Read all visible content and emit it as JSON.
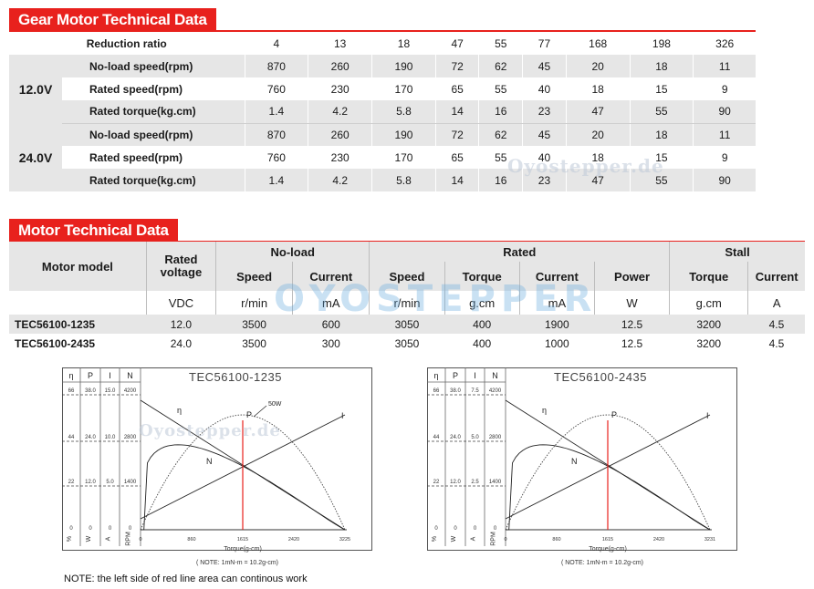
{
  "gear": {
    "title": "Gear Motor Technical Data",
    "ratio_label": "Reduction ratio",
    "ratios": [
      "4",
      "13",
      "18",
      "47",
      "55",
      "77",
      "168",
      "198",
      "326"
    ],
    "groups": [
      {
        "voltage": "12.0V",
        "rows": [
          {
            "label": "No-load speed(rpm)",
            "values": [
              "870",
              "260",
              "190",
              "72",
              "62",
              "45",
              "20",
              "18",
              "11"
            ]
          },
          {
            "label": "Rated speed(rpm)",
            "values": [
              "760",
              "230",
              "170",
              "65",
              "55",
              "40",
              "18",
              "15",
              "9"
            ]
          },
          {
            "label": "Rated torque(kg.cm)",
            "values": [
              "1.4",
              "4.2",
              "5.8",
              "14",
              "16",
              "23",
              "47",
              "55",
              "90"
            ]
          }
        ]
      },
      {
        "voltage": "24.0V",
        "rows": [
          {
            "label": "No-load speed(rpm)",
            "values": [
              "870",
              "260",
              "190",
              "72",
              "62",
              "45",
              "20",
              "18",
              "11"
            ]
          },
          {
            "label": "Rated speed(rpm)",
            "values": [
              "760",
              "230",
              "170",
              "65",
              "55",
              "40",
              "18",
              "15",
              "9"
            ]
          },
          {
            "label": "Rated torque(kg.cm)",
            "values": [
              "1.4",
              "4.2",
              "5.8",
              "14",
              "16",
              "23",
              "47",
              "55",
              "90"
            ]
          }
        ]
      }
    ]
  },
  "motor": {
    "title": "Motor Technical Data",
    "model_header": "Motor model",
    "rated_voltage_header": "Rated voltage",
    "noload_header": "No-load",
    "rated_header": "Rated",
    "stall_header": "Stall",
    "sub": [
      "Speed",
      "Current",
      "Speed",
      "Torque",
      "Current",
      "Power",
      "Torque",
      "Current"
    ],
    "units": [
      "VDC",
      "r/min",
      "mA",
      "r/min",
      "g.cm",
      "mA",
      "W",
      "g.cm",
      "A"
    ],
    "rows": [
      {
        "model": "TEC56100-1235",
        "values": [
          "12.0",
          "3500",
          "600",
          "3050",
          "400",
          "1900",
          "12.5",
          "3200",
          "4.5"
        ]
      },
      {
        "model": "TEC56100-2435",
        "values": [
          "24.0",
          "3500",
          "300",
          "3050",
          "400",
          "1000",
          "12.5",
          "3200",
          "4.5"
        ]
      }
    ]
  },
  "watermarks": {
    "text1": "Oyostepper.de",
    "text2": "OYOSTEPPER"
  },
  "charts": [
    {
      "title": "TEC56100-1235",
      "col_headers": [
        "η",
        "P",
        "I",
        "N"
      ],
      "row_values": [
        [
          "66",
          "38.0",
          "15.0",
          "4200"
        ],
        [
          "44",
          "24.0",
          "10.0",
          "2800"
        ],
        [
          "22",
          "12.0",
          "5.0",
          "1400"
        ],
        [
          "0",
          "0",
          "0",
          "0"
        ]
      ],
      "bottom_units": [
        "%",
        "W",
        "A",
        "RPM"
      ],
      "x_ticks": [
        "0",
        "860",
        "1615",
        "2420",
        "3225"
      ],
      "xlabel": "Torque(g-cm)",
      "note": "( NOTE: 1mN-m = 10.2g-cm)",
      "curve_labels": [
        "η",
        "P",
        "I",
        "N"
      ],
      "power_label": "50W"
    },
    {
      "title": "TEC56100-2435",
      "col_headers": [
        "η",
        "P",
        "I",
        "N"
      ],
      "row_values": [
        [
          "66",
          "38.0",
          "7.5",
          "4200"
        ],
        [
          "44",
          "24.0",
          "5.0",
          "2800"
        ],
        [
          "22",
          "12.0",
          "2.5",
          "1400"
        ],
        [
          "0",
          "0",
          "0",
          "0"
        ]
      ],
      "bottom_units": [
        "%",
        "W",
        "A",
        "RPM"
      ],
      "x_ticks": [
        "0",
        "860",
        "1615",
        "2420",
        "3231"
      ],
      "xlabel": "Torque(g-cm)",
      "note": "( NOTE: 1mN-m = 10.2g-cm)",
      "curve_labels": [
        "η",
        "P",
        "I",
        "N"
      ],
      "power_label": ""
    }
  ],
  "footer_note": "NOTE: the left side of red line area can continous work",
  "colors": {
    "accent": "#e8211d",
    "shade": "#e6e6e6"
  }
}
